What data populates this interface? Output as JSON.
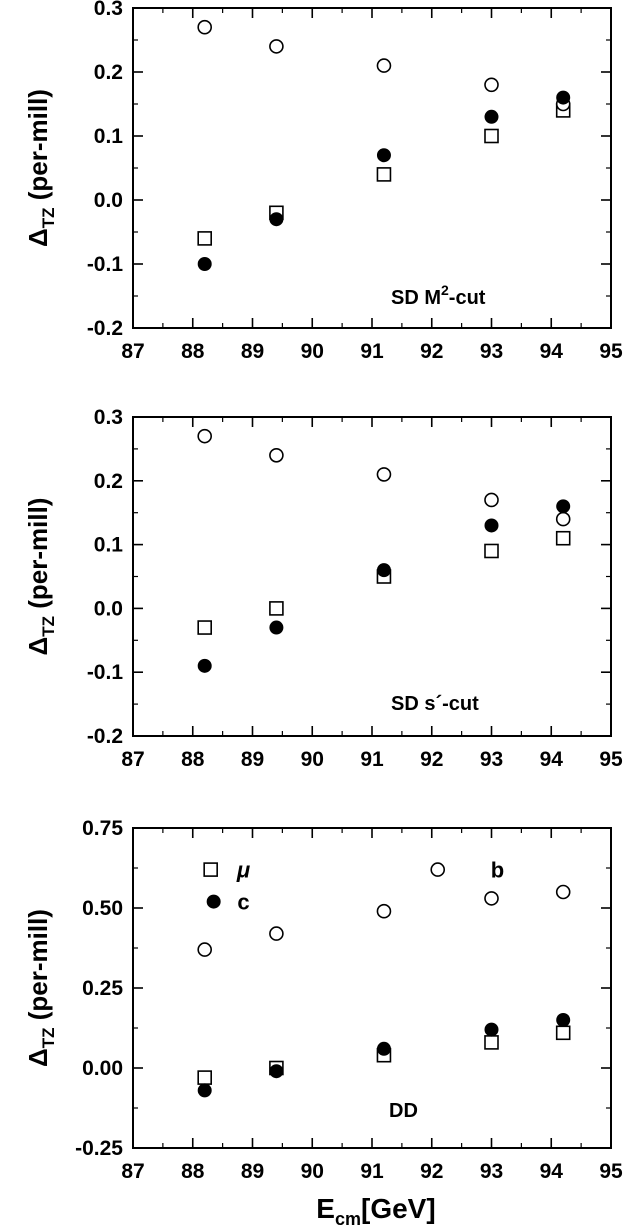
{
  "xlabel": {
    "main": "E",
    "sub": "cm",
    "rest": "[GeV]"
  },
  "chart_data": [
    {
      "type": "scatter",
      "xlim": [
        87,
        95
      ],
      "ylim": [
        -0.2,
        0.3
      ],
      "xticks": [
        "87",
        "88",
        "89",
        "90",
        "91",
        "92",
        "93",
        "94",
        "95"
      ],
      "yticks": [
        "-0.2",
        "-0.1",
        "0.0",
        "0.1",
        "0.2",
        "0.3"
      ],
      "ylabel": {
        "main": "Δ",
        "sub": "TZ",
        "rest": " (per-mill)"
      },
      "annotation": {
        "text": "SD M",
        "sup": "2",
        "tail": "-cut"
      },
      "series": [
        {
          "marker": "open-square",
          "x": [
            88.2,
            89.4,
            91.2,
            93.0,
            94.2
          ],
          "y": [
            -0.06,
            -0.02,
            0.04,
            0.1,
            0.14
          ]
        },
        {
          "marker": "filled-circle",
          "x": [
            88.2,
            89.4,
            91.2,
            93.0,
            94.2
          ],
          "y": [
            -0.1,
            -0.03,
            0.07,
            0.13,
            0.16
          ]
        },
        {
          "marker": "open-circle",
          "x": [
            88.2,
            89.4,
            91.2,
            93.0,
            94.2
          ],
          "y": [
            0.27,
            0.24,
            0.21,
            0.18,
            0.15
          ]
        }
      ]
    },
    {
      "type": "scatter",
      "xlim": [
        87,
        95
      ],
      "ylim": [
        -0.2,
        0.3
      ],
      "xticks": [
        "87",
        "88",
        "89",
        "90",
        "91",
        "92",
        "93",
        "94",
        "95"
      ],
      "yticks": [
        "-0.2",
        "-0.1",
        "0.0",
        "0.1",
        "0.2",
        "0.3"
      ],
      "ylabel": {
        "main": "Δ",
        "sub": "TZ",
        "rest": " (per-mill)"
      },
      "annotation": {
        "text": "SD s´-cut",
        "sup": "",
        "tail": ""
      },
      "series": [
        {
          "marker": "open-square",
          "x": [
            88.2,
            89.4,
            91.2,
            93.0,
            94.2
          ],
          "y": [
            -0.03,
            0.0,
            0.05,
            0.09,
            0.11
          ]
        },
        {
          "marker": "filled-circle",
          "x": [
            88.2,
            89.4,
            91.2,
            93.0,
            94.2
          ],
          "y": [
            -0.09,
            -0.03,
            0.06,
            0.13,
            0.16
          ]
        },
        {
          "marker": "open-circle",
          "x": [
            88.2,
            89.4,
            91.2,
            93.0,
            94.2
          ],
          "y": [
            0.27,
            0.24,
            0.21,
            0.17,
            0.14
          ]
        }
      ]
    },
    {
      "type": "scatter",
      "xlim": [
        87,
        95
      ],
      "ylim": [
        -0.25,
        0.75
      ],
      "xticks": [
        "87",
        "88",
        "89",
        "90",
        "91",
        "92",
        "93",
        "94",
        "95"
      ],
      "yticks": [
        "-0.25",
        "0.00",
        "0.25",
        "0.50",
        "0.75"
      ],
      "ylabel": {
        "main": "Δ",
        "sub": "TZ",
        "rest": " (per-mill)"
      },
      "annotation": {
        "text": "DD",
        "sup": "",
        "tail": ""
      },
      "legend": [
        {
          "marker": "open-square",
          "label": "μ",
          "marker_x": 88.3,
          "marker_y": 0.62,
          "label_x": 88.85,
          "label_y": 0.62
        },
        {
          "marker": "filled-circle",
          "label": "c",
          "marker_x": 88.35,
          "marker_y": 0.52,
          "label_x": 88.85,
          "label_y": 0.52
        },
        {
          "marker": "open-circle",
          "label": "b",
          "marker_x": 92.1,
          "marker_y": 0.62,
          "label_x": 93.1,
          "label_y": 0.62
        }
      ],
      "series": [
        {
          "marker": "open-square",
          "x": [
            88.2,
            89.4,
            91.2,
            93.0,
            94.2
          ],
          "y": [
            -0.03,
            0.0,
            0.04,
            0.08,
            0.11
          ]
        },
        {
          "marker": "filled-circle",
          "x": [
            88.2,
            89.4,
            91.2,
            93.0,
            94.2
          ],
          "y": [
            -0.07,
            -0.01,
            0.06,
            0.12,
            0.15
          ]
        },
        {
          "marker": "open-circle",
          "x": [
            88.2,
            89.4,
            91.2,
            93.0,
            94.2
          ],
          "y": [
            0.37,
            0.42,
            0.49,
            0.53,
            0.55
          ]
        }
      ]
    }
  ]
}
